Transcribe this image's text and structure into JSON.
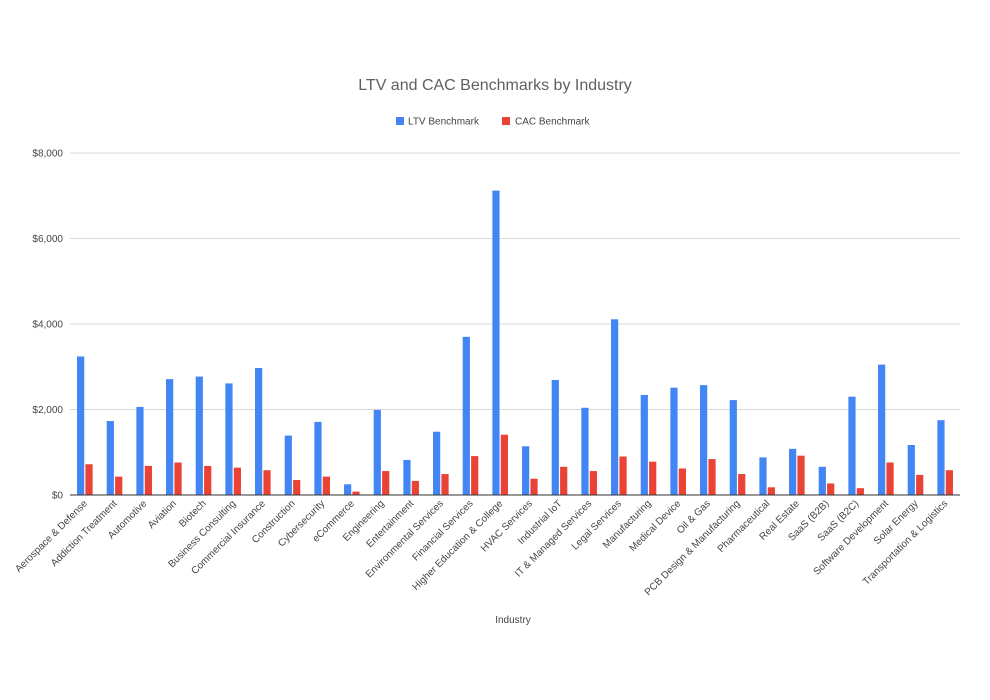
{
  "chart_data": {
    "type": "bar",
    "title": "LTV and CAC Benchmarks by Industry",
    "xlabel": "Industry",
    "ylabel": "",
    "ylim": [
      0,
      8000
    ],
    "yticks": [
      0,
      2000,
      4000,
      6000,
      8000
    ],
    "ytick_labels": [
      "$0",
      "$2,000",
      "$4,000",
      "$6,000",
      "$8,000"
    ],
    "grid": true,
    "legend_position": "top-center",
    "categories": [
      "Aerospace & Defense",
      "Addiction Treatment",
      "Automotive",
      "Aviation",
      "Biotech",
      "Business Consulting",
      "Commercial Insurance",
      "Construction",
      "Cybersecurity",
      "eCommerce",
      "Engineering",
      "Entertainment",
      "Environmental Services",
      "Financial Services",
      "Higher Education & College",
      "HVAC Services",
      "Industrial IoT",
      "IT & Managed Services",
      "Legal Services",
      "Manufacturing",
      "Medical Device",
      "Oil & Gas",
      "PCB Design & Manufacturing",
      "Pharmaceutical",
      "Real Estate",
      "SaaS (B2B)",
      "SaaS (B2C)",
      "Software Development",
      "Solar Energy",
      "Transportation & Logistics"
    ],
    "series": [
      {
        "name": "LTV Benchmark",
        "color": "#4285f4",
        "values": [
          3240,
          1730,
          2060,
          2710,
          2770,
          2610,
          2970,
          1390,
          1710,
          250,
          1990,
          820,
          1480,
          3700,
          7120,
          1140,
          2690,
          2040,
          4110,
          2340,
          2510,
          2570,
          2220,
          880,
          1080,
          660,
          2300,
          3050,
          1170,
          1750
        ]
      },
      {
        "name": "CAC Benchmark",
        "color": "#ea4335",
        "values": [
          720,
          430,
          680,
          760,
          680,
          640,
          580,
          350,
          430,
          80,
          560,
          330,
          490,
          910,
          1410,
          380,
          660,
          560,
          900,
          780,
          620,
          840,
          490,
          180,
          920,
          270,
          160,
          760,
          470,
          580
        ]
      }
    ]
  }
}
